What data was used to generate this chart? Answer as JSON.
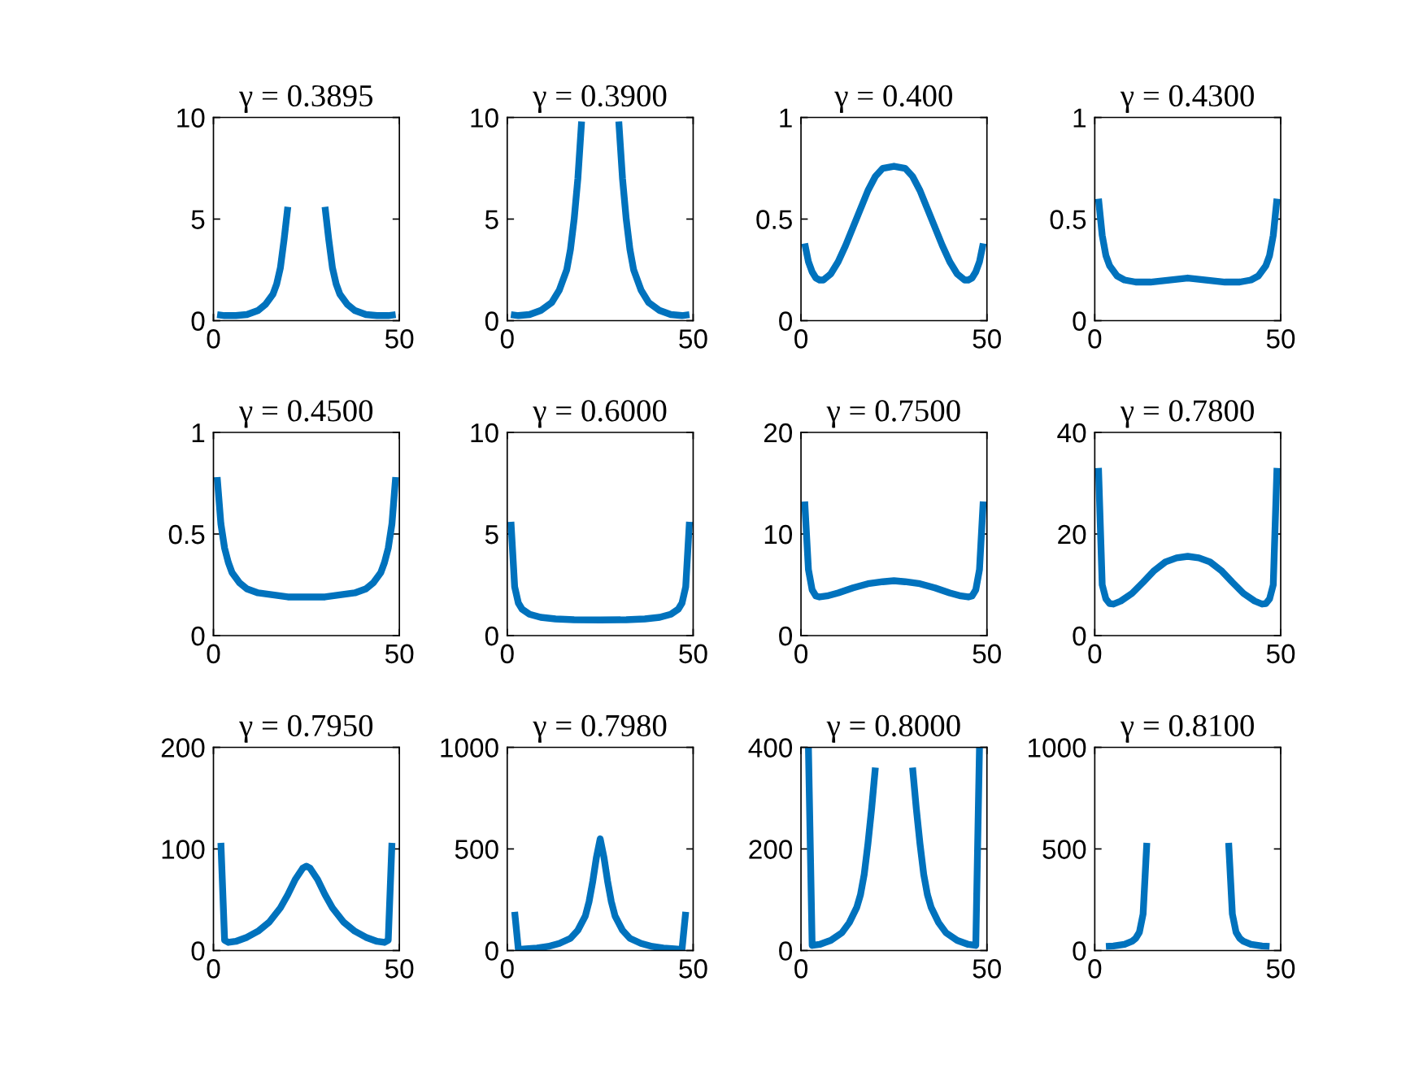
{
  "chart_data": [
    {
      "type": "line",
      "title": "γ = 0.3895",
      "color": "#0072bd",
      "xlim": [
        0,
        50
      ],
      "xticks": [
        0,
        50
      ],
      "ylim": [
        0,
        10
      ],
      "yticks": [
        0,
        5,
        10
      ],
      "x": [
        1,
        3,
        6,
        9,
        12,
        14,
        16,
        17,
        18,
        19,
        20,
        25,
        30,
        31,
        32,
        33,
        34,
        36,
        38,
        41,
        44,
        47,
        49
      ],
      "values": [
        0.3,
        0.25,
        0.25,
        0.3,
        0.5,
        0.8,
        1.3,
        1.8,
        2.6,
        4,
        5.6,
        null,
        5.6,
        4,
        2.6,
        1.8,
        1.3,
        0.8,
        0.5,
        0.3,
        0.25,
        0.25,
        0.3
      ]
    },
    {
      "type": "line",
      "title": "γ = 0.3900",
      "color": "#0072bd",
      "xlim": [
        0,
        50
      ],
      "xticks": [
        0,
        50
      ],
      "ylim": [
        0,
        10
      ],
      "yticks": [
        0,
        5,
        10
      ],
      "x": [
        1,
        3,
        6,
        9,
        12,
        14,
        16,
        17,
        18,
        19,
        20,
        25,
        30,
        31,
        32,
        33,
        34,
        36,
        38,
        41,
        44,
        47,
        49
      ],
      "values": [
        0.3,
        0.25,
        0.3,
        0.5,
        0.9,
        1.5,
        2.5,
        3.5,
        5,
        7,
        9.8,
        null,
        9.8,
        7,
        5,
        3.5,
        2.5,
        1.5,
        0.9,
        0.5,
        0.3,
        0.25,
        0.3
      ]
    },
    {
      "type": "line",
      "title": "γ = 0.400",
      "color": "#0072bd",
      "xlim": [
        0,
        50
      ],
      "xticks": [
        0,
        50
      ],
      "ylim": [
        0,
        1
      ],
      "yticks": [
        0,
        0.5,
        1
      ],
      "x": [
        1,
        2,
        3,
        4,
        5,
        6,
        8,
        10,
        12,
        14,
        16,
        18,
        20,
        22,
        25,
        28,
        30,
        32,
        34,
        36,
        38,
        40,
        42,
        44,
        45,
        46,
        47,
        48,
        49
      ],
      "values": [
        0.38,
        0.29,
        0.24,
        0.21,
        0.2,
        0.2,
        0.23,
        0.29,
        0.37,
        0.46,
        0.55,
        0.64,
        0.71,
        0.75,
        0.76,
        0.75,
        0.71,
        0.64,
        0.55,
        0.46,
        0.37,
        0.29,
        0.23,
        0.2,
        0.2,
        0.21,
        0.24,
        0.29,
        0.38
      ]
    },
    {
      "type": "line",
      "title": "γ = 0.4300",
      "color": "#0072bd",
      "xlim": [
        0,
        50
      ],
      "xticks": [
        0,
        50
      ],
      "ylim": [
        0,
        1
      ],
      "yticks": [
        0,
        0.5,
        1
      ],
      "x": [
        1,
        2,
        3,
        4,
        6,
        8,
        11,
        15,
        20,
        25,
        30,
        35,
        39,
        42,
        44,
        46,
        47,
        48,
        49
      ],
      "values": [
        0.6,
        0.42,
        0.32,
        0.27,
        0.22,
        0.2,
        0.19,
        0.19,
        0.2,
        0.21,
        0.2,
        0.19,
        0.19,
        0.2,
        0.22,
        0.27,
        0.32,
        0.42,
        0.6
      ]
    },
    {
      "type": "line",
      "title": "γ = 0.4500",
      "color": "#0072bd",
      "xlim": [
        0,
        50
      ],
      "xticks": [
        0,
        50
      ],
      "ylim": [
        0,
        1
      ],
      "yticks": [
        0,
        0.5,
        1
      ],
      "x": [
        1,
        2,
        3,
        4,
        5,
        7,
        9,
        12,
        16,
        20,
        25,
        30,
        34,
        38,
        41,
        43,
        45,
        46,
        47,
        48,
        49
      ],
      "values": [
        0.78,
        0.55,
        0.43,
        0.36,
        0.31,
        0.26,
        0.23,
        0.21,
        0.2,
        0.19,
        0.19,
        0.19,
        0.2,
        0.21,
        0.23,
        0.26,
        0.31,
        0.36,
        0.43,
        0.55,
        0.78
      ]
    },
    {
      "type": "line",
      "title": "γ = 0.6000",
      "color": "#0072bd",
      "xlim": [
        0,
        50
      ],
      "xticks": [
        0,
        50
      ],
      "ylim": [
        0,
        10
      ],
      "yticks": [
        0,
        5,
        10
      ],
      "x": [
        1,
        2,
        3,
        4,
        6,
        9,
        13,
        18,
        25,
        32,
        37,
        41,
        44,
        46,
        47,
        48,
        49
      ],
      "values": [
        5.6,
        2.4,
        1.6,
        1.3,
        1.05,
        0.9,
        0.82,
        0.78,
        0.77,
        0.78,
        0.82,
        0.9,
        1.05,
        1.3,
        1.6,
        2.4,
        5.6
      ]
    },
    {
      "type": "line",
      "title": "γ = 0.7500",
      "color": "#0072bd",
      "xlim": [
        0,
        50
      ],
      "xticks": [
        0,
        50
      ],
      "ylim": [
        0,
        20
      ],
      "yticks": [
        0,
        10,
        20
      ],
      "x": [
        1,
        2,
        3,
        4,
        5,
        7,
        10,
        14,
        18,
        22,
        25,
        28,
        32,
        36,
        40,
        43,
        45,
        46,
        47,
        48,
        49
      ],
      "values": [
        13.2,
        6.5,
        4.5,
        3.9,
        3.8,
        3.9,
        4.2,
        4.7,
        5.1,
        5.3,
        5.4,
        5.3,
        5.1,
        4.7,
        4.2,
        3.9,
        3.8,
        3.9,
        4.5,
        6.5,
        13.2
      ]
    },
    {
      "type": "line",
      "title": "γ = 0.7800",
      "color": "#0072bd",
      "xlim": [
        0,
        50
      ],
      "xticks": [
        0,
        50
      ],
      "ylim": [
        0,
        40
      ],
      "yticks": [
        0,
        20,
        40
      ],
      "x": [
        1,
        2,
        3,
        4,
        5,
        7,
        10,
        13,
        16,
        19,
        22,
        25,
        28,
        31,
        34,
        37,
        40,
        43,
        45,
        46,
        47,
        48,
        49
      ],
      "values": [
        33,
        10,
        7.2,
        6.3,
        6.2,
        6.8,
        8.3,
        10.5,
        12.8,
        14.5,
        15.3,
        15.6,
        15.3,
        14.5,
        12.8,
        10.5,
        8.3,
        6.8,
        6.2,
        6.3,
        7.2,
        10,
        33
      ]
    },
    {
      "type": "line",
      "title": "γ = 0.7950",
      "color": "#0072bd",
      "xlim": [
        0,
        50
      ],
      "xticks": [
        0,
        50
      ],
      "ylim": [
        0,
        200
      ],
      "yticks": [
        0,
        100,
        200
      ],
      "x": [
        2,
        3,
        4,
        6,
        9,
        12,
        15,
        18,
        20,
        22,
        24,
        25,
        26,
        28,
        30,
        32,
        35,
        38,
        41,
        44,
        46,
        47,
        48
      ],
      "values": [
        106,
        10,
        8,
        9,
        13,
        19,
        28,
        42,
        55,
        70,
        81,
        83,
        81,
        70,
        55,
        42,
        28,
        19,
        13,
        9,
        8,
        10,
        106
      ]
    },
    {
      "type": "line",
      "title": "γ = 0.7980",
      "color": "#0072bd",
      "xlim": [
        0,
        50
      ],
      "xticks": [
        0,
        50
      ],
      "ylim": [
        0,
        1000
      ],
      "yticks": [
        0,
        500,
        1000
      ],
      "x": [
        2,
        3,
        5,
        8,
        11,
        14,
        17,
        19,
        21,
        22,
        23,
        24,
        25,
        26,
        27,
        28,
        29,
        31,
        33,
        36,
        39,
        42,
        45,
        47,
        48
      ],
      "values": [
        190,
        5,
        8,
        12,
        20,
        35,
        60,
        100,
        170,
        240,
        340,
        460,
        550,
        460,
        340,
        240,
        170,
        100,
        60,
        35,
        20,
        12,
        8,
        5,
        190
      ]
    },
    {
      "type": "line",
      "title": "γ = 0.8000",
      "color": "#0072bd",
      "xlim": [
        0,
        50
      ],
      "xticks": [
        0,
        50
      ],
      "ylim": [
        0,
        400
      ],
      "yticks": [
        0,
        200,
        400
      ],
      "x": [
        2,
        3,
        5,
        8,
        11,
        13,
        15,
        16,
        17,
        18,
        19,
        20,
        25,
        30,
        31,
        32,
        33,
        34,
        35,
        37,
        39,
        42,
        45,
        47,
        48
      ],
      "values": [
        400,
        10,
        12,
        20,
        35,
        55,
        85,
        110,
        150,
        210,
        280,
        360,
        null,
        360,
        280,
        210,
        150,
        110,
        85,
        55,
        35,
        20,
        12,
        10,
        400
      ]
    },
    {
      "type": "line",
      "title": "γ = 0.8100",
      "color": "#0072bd",
      "xlim": [
        0,
        50
      ],
      "xticks": [
        0,
        50
      ],
      "ylim": [
        0,
        1000
      ],
      "yticks": [
        0,
        500,
        1000
      ],
      "x": [
        3,
        5,
        8,
        10,
        11,
        12,
        13,
        14,
        25,
        36,
        37,
        38,
        39,
        40,
        42,
        45,
        47
      ],
      "values": [
        20,
        22,
        30,
        45,
        60,
        90,
        180,
        530,
        null,
        530,
        180,
        90,
        60,
        45,
        30,
        22,
        20
      ]
    }
  ]
}
